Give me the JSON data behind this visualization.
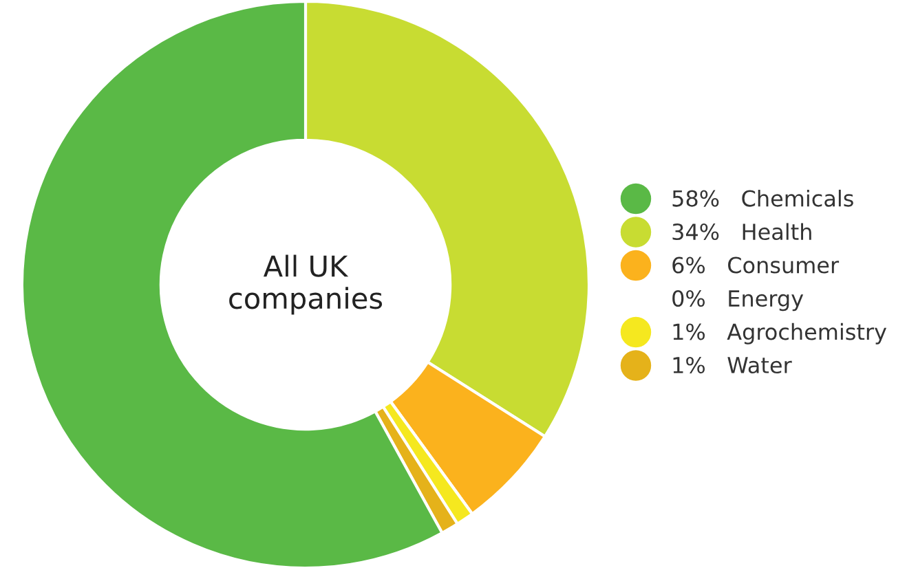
{
  "chart_data": {
    "type": "donut",
    "title": "All UK\ncompanies",
    "categories": [
      "Chemicals",
      "Health",
      "Consumer",
      "Energy",
      "Agrochemistry",
      "Water"
    ],
    "values": [
      58,
      34,
      6,
      0,
      1,
      1
    ],
    "value_labels": [
      "58%",
      "34%",
      "6%",
      "0%",
      "1%",
      "1%"
    ],
    "colors": [
      "#5ab946",
      "#c8dc32",
      "#fbb21d",
      "#ffffff",
      "#f5e81f",
      "#e5b21a"
    ],
    "legend": "right"
  }
}
